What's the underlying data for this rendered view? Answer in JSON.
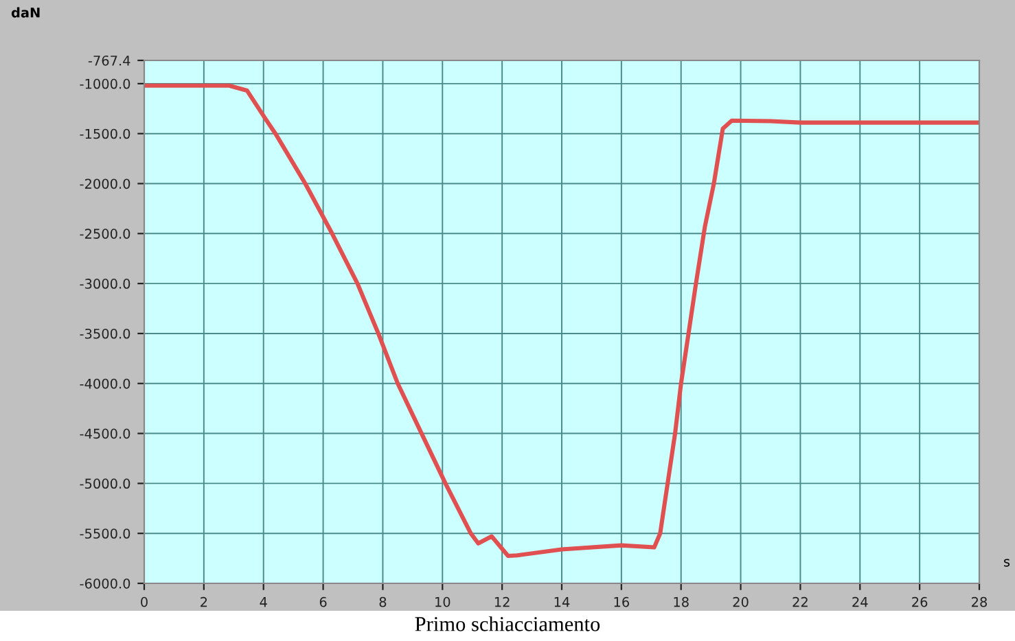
{
  "chart_data": {
    "type": "line",
    "xlabel": "s",
    "ylabel": "daN",
    "annotations": [
      "Primo schiacciamento"
    ],
    "x": [
      0,
      1,
      2,
      2.85,
      3.45,
      4.05,
      4.4,
      5.4,
      6.3,
      7.15,
      7.85,
      8.5,
      9.3,
      10.1,
      10.95,
      11.2,
      11.65,
      12.2,
      12.5,
      14,
      16,
      17.1,
      17.3,
      17.55,
      17.8,
      18.0,
      18.25,
      18.5,
      18.8,
      19.1,
      19.4,
      19.7,
      21,
      22,
      24,
      26,
      28
    ],
    "series": [
      {
        "color": "#e05050",
        "values": [
          -1020,
          -1020,
          -1020,
          -1020,
          -1070,
          -1345,
          -1500,
          -2000,
          -2500,
          -3000,
          -3500,
          -4000,
          -4500,
          -5000,
          -5500,
          -5600,
          -5530,
          -5725,
          -5720,
          -5660,
          -5620,
          -5640,
          -5500,
          -5000,
          -4500,
          -4000,
          -3500,
          -3000,
          -2430,
          -2000,
          -1450,
          -1370,
          -1375,
          -1390,
          -1390,
          -1390,
          -1390
        ]
      }
    ],
    "xlim": [
      0,
      28
    ],
    "xticks": [
      0,
      2,
      4,
      6,
      8,
      10,
      12,
      14,
      16,
      18,
      20,
      22,
      24,
      26,
      28
    ],
    "ylim": [
      -6000,
      -767.4
    ],
    "yticks": [
      {
        "value": -767.4,
        "label": "-767.4"
      },
      {
        "value": -1000,
        "label": "-1000.0"
      },
      {
        "value": -1500,
        "label": "-1500.0"
      },
      {
        "value": -2000,
        "label": "-2000.0"
      },
      {
        "value": -2500,
        "label": "-2500.0"
      },
      {
        "value": -3000,
        "label": "-3000.0"
      },
      {
        "value": -3500,
        "label": "-3500.0"
      },
      {
        "value": -4000,
        "label": "-4000.0"
      },
      {
        "value": -4500,
        "label": "-4500.0"
      },
      {
        "value": -5000,
        "label": "-5000.0"
      },
      {
        "value": -5500,
        "label": "-5500.0"
      },
      {
        "value": -6000,
        "label": "-6000.0"
      }
    ],
    "grid": true,
    "legend": false
  }
}
